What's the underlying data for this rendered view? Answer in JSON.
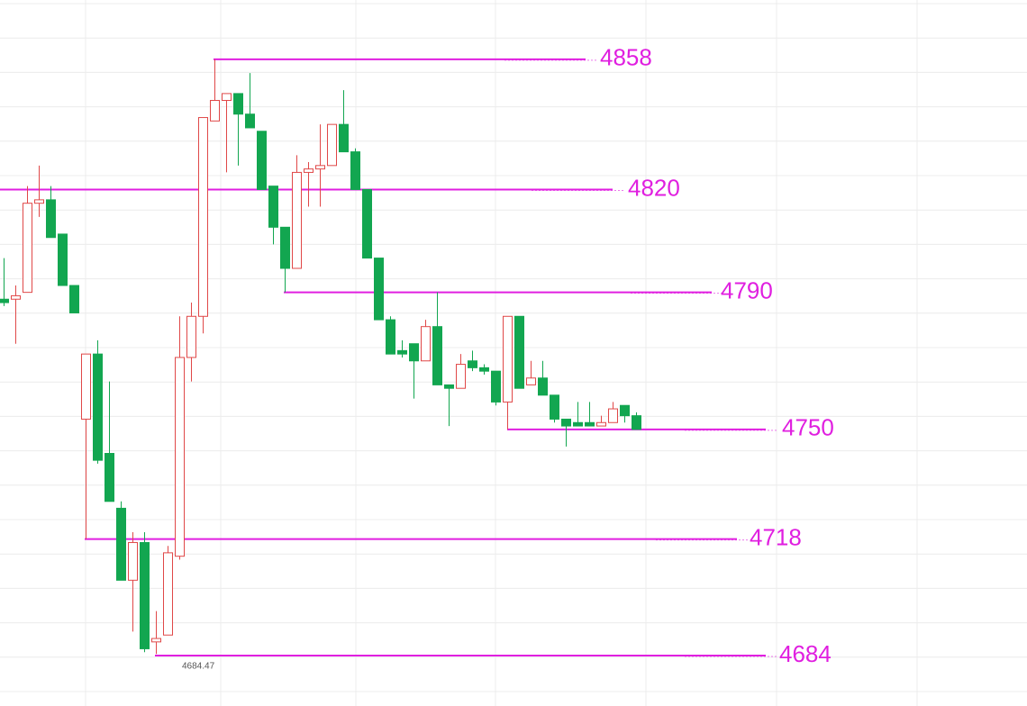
{
  "chart_data": {
    "type": "candlestick",
    "up_color": "#e04848",
    "down_color": "#12a650",
    "level_color": "#e01fe0",
    "ylim": [
      4669.3,
      4875.3
    ],
    "open": [
      4788,
      4788,
      4790,
      4816,
      4817,
      4807,
      4792,
      4753,
      4772,
      4743,
      4727,
      4706,
      4717,
      4688,
      4690,
      4713,
      4771,
      4783,
      4840,
      4846,
      4848,
      4842,
      4837,
      4821,
      4809,
      4797,
      4825,
      4826,
      4827,
      4839,
      4831,
      4820,
      4800,
      4782,
      4773,
      4775,
      4770,
      4780,
      4763,
      4762,
      4770,
      4768,
      4767,
      4758,
      4783,
      4763,
      4765,
      4760,
      4753,
      4752,
      4752,
      4751,
      4752,
      4757,
      4754
    ],
    "high": [
      4800,
      4792,
      4821,
      4827,
      4821,
      4807,
      4792,
      4772,
      4776,
      4764,
      4729,
      4720,
      4720,
      4697,
      4716,
      4783,
      4787,
      4841,
      4858,
      4848,
      4848,
      4854,
      4837,
      4821,
      4809,
      4830,
      4828,
      4839,
      4839,
      4849,
      4832,
      4820,
      4800,
      4783,
      4776,
      4775,
      4782,
      4790,
      4763,
      4772,
      4773,
      4769,
      4767,
      4783,
      4783,
      4770,
      4770,
      4760,
      4753,
      4758,
      4758,
      4754,
      4758,
      4757,
      4755
    ],
    "low": [
      4786,
      4775,
      4790,
      4812,
      4806,
      4792,
      4784,
      4718,
      4740,
      4729,
      4706,
      4691,
      4685,
      4684.47,
      4690,
      4712,
      4764,
      4778,
      4840,
      4825,
      4827,
      4838,
      4820,
      4804,
      4790,
      4797,
      4815,
      4815,
      4827,
      4831,
      4820,
      4800,
      4782,
      4772,
      4771,
      4759,
      4770,
      4763,
      4751,
      4762,
      4767,
      4766,
      4757,
      4750,
      4762,
      4763,
      4760,
      4752,
      4745,
      4751,
      4751,
      4751,
      4752,
      4752,
      4750
    ],
    "close": [
      4787,
      4789,
      4816,
      4817,
      4806,
      4792,
      4784,
      4772,
      4741,
      4729,
      4706,
      4717,
      4686,
      4689,
      4714,
      4771,
      4783,
      4841,
      4846,
      4848,
      4842,
      4838,
      4820,
      4809,
      4797,
      4825,
      4826,
      4827,
      4839,
      4831,
      4820,
      4800,
      4782,
      4772,
      4772,
      4770,
      4780,
      4763,
      4762,
      4769,
      4768,
      4767,
      4758,
      4783,
      4762,
      4765,
      4760,
      4753,
      4751,
      4751,
      4751,
      4752,
      4756,
      4754,
      4750
    ],
    "levels": [
      4858,
      4820,
      4790,
      4750,
      4718,
      4684
    ]
  }
}
